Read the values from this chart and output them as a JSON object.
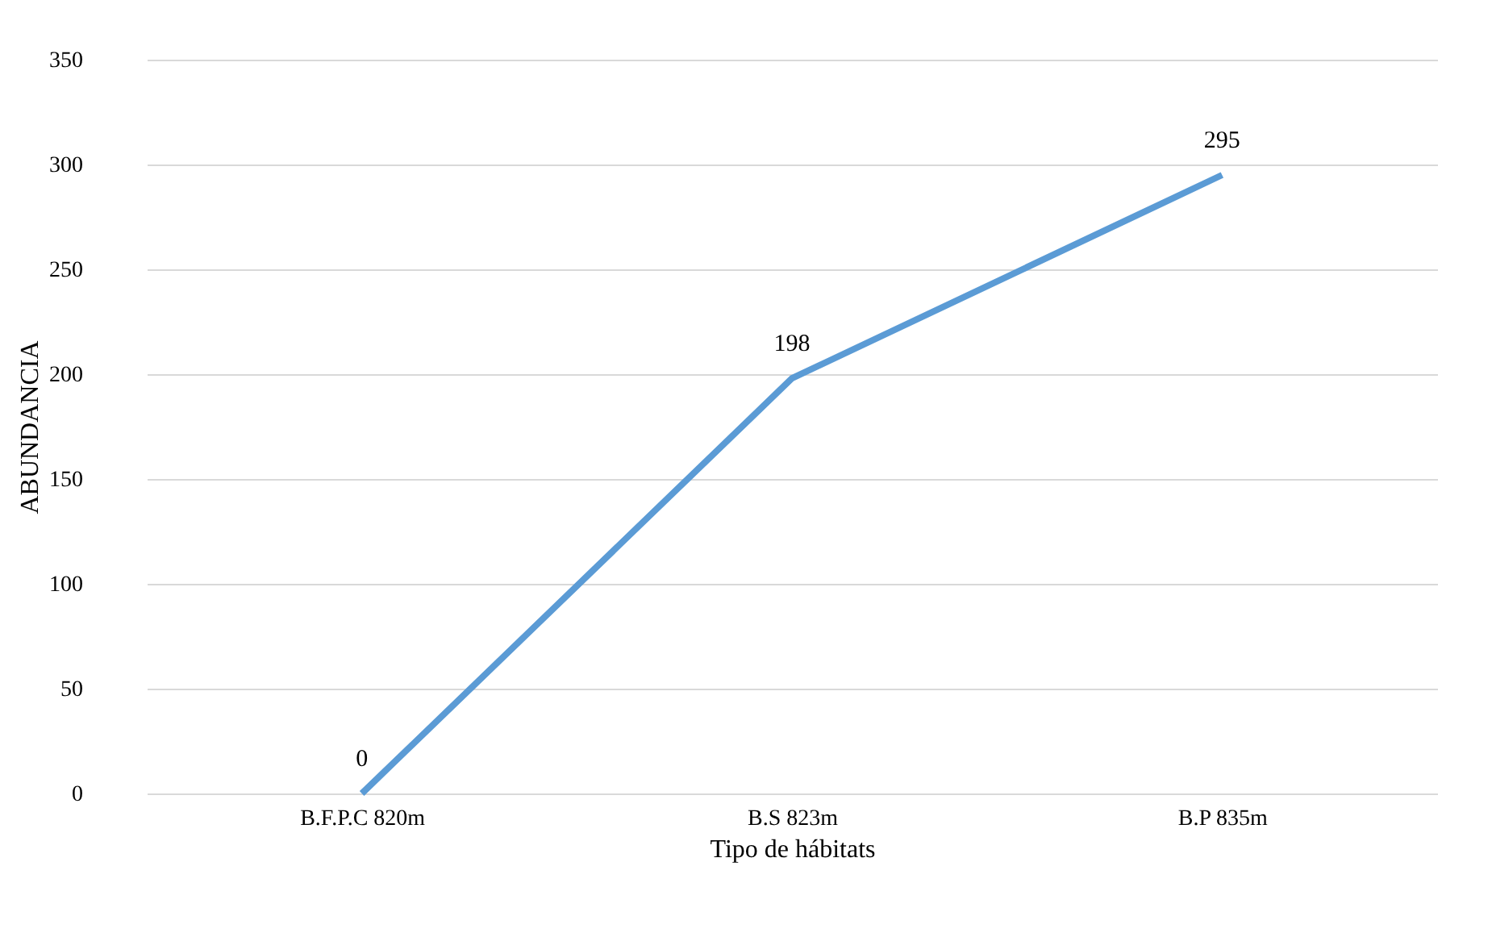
{
  "chart_data": {
    "type": "line",
    "xlabel": "Tipo de hábitats",
    "ylabel": "ABUNDANCIA",
    "categories": [
      "B.F.P.C    820m",
      "B.S    823m",
      "B.P    835m"
    ],
    "series": [
      {
        "color": "#5b9bd5",
        "values": [
          0,
          198,
          295
        ]
      }
    ],
    "ylim": [
      0,
      350
    ],
    "yticks": [
      0,
      50,
      100,
      150,
      200,
      250,
      300,
      350
    ],
    "grid": "y",
    "data_labels": true,
    "marker": "none",
    "line_style": "solid"
  }
}
